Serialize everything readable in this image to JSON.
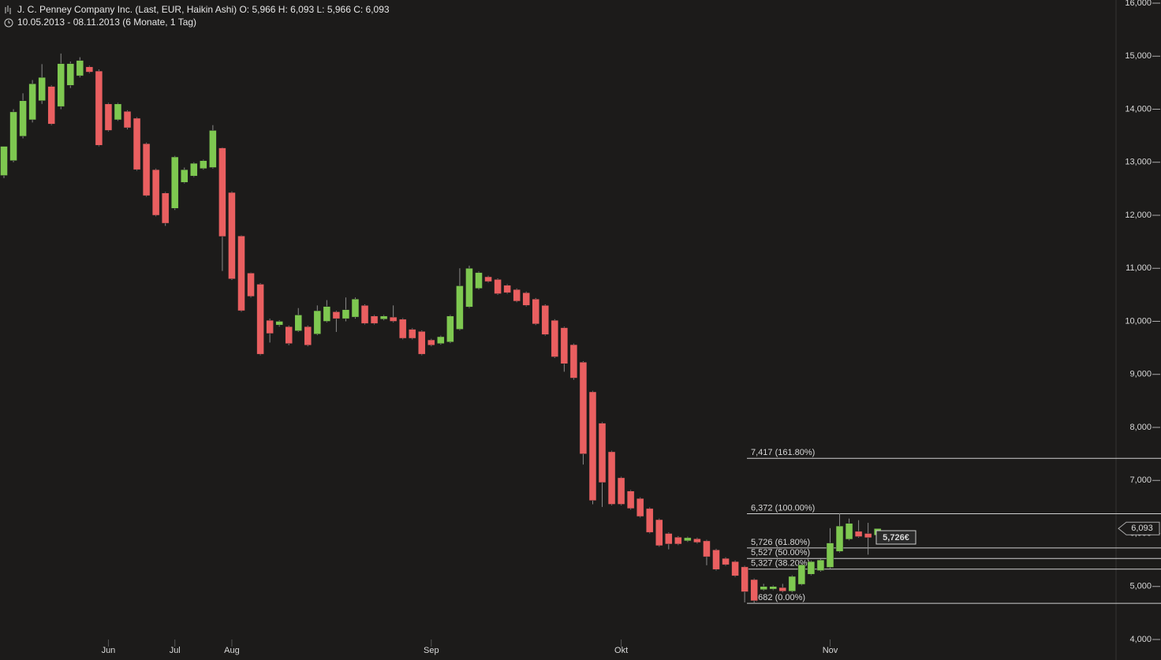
{
  "chart_data": {
    "type": "candlestick",
    "title": "J. C. Penney Company Inc. (Last, EUR, Haikin Ashi)  O: 5,966  H: 6,093  L: 5,966  C: 6,093",
    "subtitle": "10.05.2013 - 08.11.2013 (6 Monate, 1 Tag)",
    "up_color": "#7ec850",
    "down_color": "#ea5f60",
    "categories": [
      null,
      null,
      null,
      null,
      null,
      null,
      null,
      null,
      null,
      null,
      null,
      "Jun",
      null,
      null,
      null,
      null,
      null,
      null,
      "Jul",
      null,
      null,
      null,
      null,
      null,
      "Aug",
      null,
      null,
      null,
      null,
      null,
      null,
      null,
      null,
      null,
      null,
      null,
      null,
      null,
      null,
      null,
      null,
      null,
      null,
      null,
      null,
      "Sep",
      null,
      null,
      null,
      null,
      null,
      null,
      null,
      null,
      null,
      null,
      null,
      null,
      null,
      null,
      null,
      null,
      null,
      null,
      null,
      "Okt",
      null,
      null,
      null,
      null,
      null,
      null,
      null,
      null,
      null,
      null,
      null,
      null,
      null,
      null,
      null,
      null,
      null,
      null,
      null,
      null,
      null,
      "Nov",
      null,
      null,
      null,
      null,
      null
    ],
    "open": [
      12.75,
      13.03,
      13.49,
      13.8,
      14.16,
      14.43,
      14.05,
      14.45,
      14.63,
      14.8,
      14.72,
      14.1,
      13.8,
      13.96,
      13.83,
      13.35,
      12.86,
      12.42,
      12.13,
      12.62,
      12.74,
      12.88,
      12.9,
      13.27,
      12.43,
      11.61,
      10.91,
      10.7,
      10.02,
      9.93,
      9.9,
      9.82,
      9.9,
      9.76,
      10.0,
      10.18,
      10.05,
      10.08,
      10.3,
      10.1,
      10.04,
      10.08,
      10.04,
      9.85,
      9.81,
      9.65,
      9.58,
      9.61,
      9.85,
      10.27,
      10.62,
      10.84,
      10.79,
      10.68,
      10.6,
      10.54,
      10.42,
      10.3,
      10.02,
      9.88,
      9.56,
      9.23,
      8.67,
      8.08,
      7.54,
      7.05,
      6.8,
      6.66,
      6.47,
      6.26,
      6.0,
      5.93,
      5.86,
      5.9,
      5.86,
      5.69,
      5.53,
      5.47,
      5.37,
      5.13,
      4.94,
      4.95,
      4.98,
      4.91,
      5.04,
      5.23,
      5.3,
      5.36,
      5.66,
      5.89,
      6.04,
      6.0,
      5.966
    ],
    "high": [
      13.3,
      14.0,
      14.3,
      14.55,
      14.85,
      14.45,
      15.05,
      14.9,
      14.98,
      14.82,
      14.75,
      14.12,
      14.12,
      13.98,
      13.85,
      13.37,
      12.88,
      12.44,
      13.12,
      12.9,
      13.0,
      13.05,
      13.7,
      13.28,
      12.45,
      11.62,
      10.92,
      10.72,
      10.05,
      10.02,
      9.92,
      10.25,
      9.92,
      10.3,
      10.4,
      10.2,
      10.45,
      10.45,
      10.32,
      10.12,
      10.12,
      10.3,
      10.06,
      9.87,
      9.83,
      9.67,
      9.73,
      10.12,
      11.0,
      11.05,
      10.94,
      10.86,
      10.81,
      10.7,
      10.62,
      10.56,
      10.44,
      10.32,
      10.04,
      9.9,
      9.58,
      9.25,
      8.69,
      8.1,
      7.56,
      7.07,
      6.82,
      6.68,
      6.49,
      6.28,
      6.02,
      5.95,
      5.94,
      5.92,
      5.88,
      5.71,
      5.55,
      5.49,
      5.39,
      5.15,
      5.05,
      5.02,
      5.05,
      5.21,
      5.43,
      5.49,
      5.52,
      6.1,
      6.38,
      6.28,
      6.25,
      6.2,
      6.093
    ],
    "low": [
      12.7,
      13.0,
      13.45,
      13.75,
      14.1,
      13.7,
      14.0,
      14.4,
      14.6,
      14.68,
      13.3,
      13.58,
      13.78,
      13.62,
      12.84,
      12.35,
      11.98,
      11.8,
      12.1,
      12.6,
      12.72,
      12.86,
      12.88,
      10.95,
      10.78,
      10.18,
      10.45,
      9.36,
      9.6,
      9.9,
      9.55,
      9.8,
      9.53,
      9.74,
      9.98,
      9.8,
      10.0,
      10.05,
      9.94,
      9.94,
      10.02,
      9.98,
      9.66,
      9.66,
      9.36,
      9.53,
      9.56,
      9.59,
      9.83,
      10.25,
      10.6,
      10.73,
      10.5,
      10.52,
      10.36,
      10.28,
      9.93,
      9.73,
      9.31,
      9.05,
      8.9,
      7.3,
      6.55,
      6.5,
      6.53,
      6.53,
      6.45,
      6.3,
      6.0,
      5.75,
      5.7,
      5.78,
      5.84,
      5.81,
      5.4,
      5.3,
      5.39,
      5.18,
      4.7,
      4.68,
      4.92,
      4.93,
      4.89,
      4.89,
      5.02,
      5.21,
      5.28,
      5.34,
      5.64,
      5.87,
      5.92,
      5.6,
      5.966
    ],
    "close": [
      13.3,
      13.95,
      14.16,
      14.48,
      14.6,
      13.72,
      14.86,
      14.86,
      14.92,
      14.7,
      13.32,
      13.6,
      14.1,
      13.65,
      12.86,
      12.37,
      12.0,
      11.85,
      13.1,
      12.86,
      12.98,
      13.03,
      13.6,
      11.6,
      10.8,
      10.2,
      10.47,
      9.38,
      9.77,
      10.0,
      9.58,
      10.12,
      9.55,
      10.2,
      10.28,
      10.05,
      10.22,
      10.42,
      9.96,
      9.96,
      10.1,
      10.0,
      9.68,
      9.68,
      9.38,
      9.55,
      9.71,
      10.1,
      10.67,
      11.0,
      10.92,
      10.75,
      10.52,
      10.54,
      10.38,
      10.3,
      9.95,
      9.75,
      9.33,
      9.2,
      8.93,
      7.5,
      6.62,
      6.96,
      6.55,
      6.55,
      6.47,
      6.32,
      6.02,
      5.77,
      5.8,
      5.8,
      5.92,
      5.83,
      5.56,
      5.32,
      5.41,
      5.2,
      4.9,
      4.73,
      5.0,
      5.0,
      4.91,
      5.19,
      5.41,
      5.47,
      5.5,
      5.82,
      6.14,
      6.19,
      5.94,
      5.92,
      6.093
    ],
    "ylim": [
      4,
      16
    ],
    "yticks": [
      {
        "value": 4,
        "label": "4,000"
      },
      {
        "value": 5,
        "label": "5,000"
      },
      {
        "value": 6,
        "label": "6,000"
      },
      {
        "value": 7,
        "label": "7,000"
      },
      {
        "value": 8,
        "label": "8,000"
      },
      {
        "value": 9,
        "label": "9,000"
      },
      {
        "value": 10,
        "label": "10,000"
      },
      {
        "value": 11,
        "label": "11,000"
      },
      {
        "value": 12,
        "label": "12,000"
      },
      {
        "value": 13,
        "label": "13,000"
      },
      {
        "value": 14,
        "label": "14,000"
      },
      {
        "value": 15,
        "label": "15,000"
      },
      {
        "value": 16,
        "label": "16,000"
      }
    ],
    "fib_levels": [
      {
        "value": 7.417,
        "label": "7,417 (161.80%)"
      },
      {
        "value": 6.372,
        "label": "6,372 (100.00%)"
      },
      {
        "value": 5.726,
        "label": "5,726 (61.80%)"
      },
      {
        "value": 5.527,
        "label": "5,527 (50.00%)"
      },
      {
        "value": 5.327,
        "label": "5,327 (38.20%)"
      },
      {
        "value": 4.682,
        "label": "4,682 (0.00%)"
      }
    ],
    "last_price": {
      "value": 6.093,
      "label": "6,093"
    },
    "marker_label": "5,726€"
  }
}
